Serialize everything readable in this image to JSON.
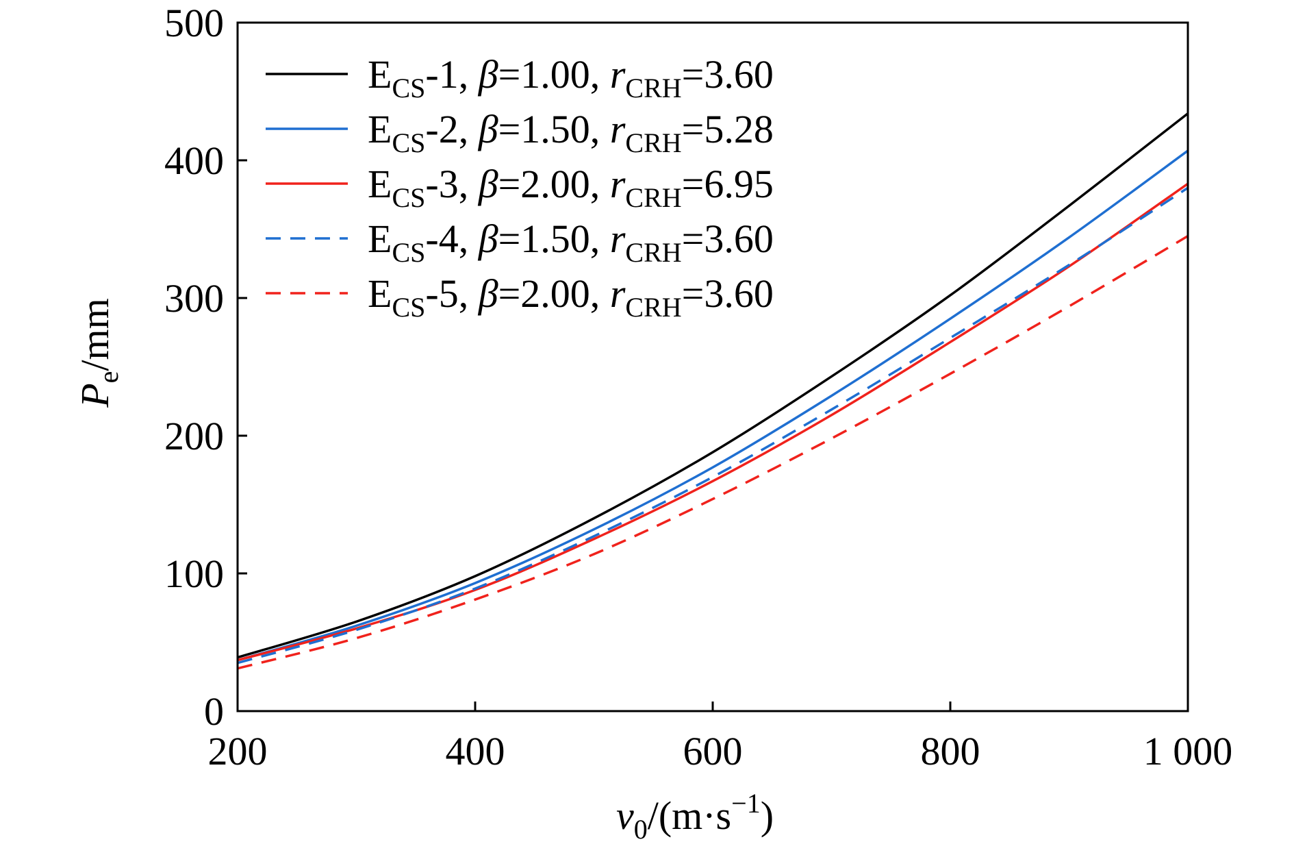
{
  "chart_data": {
    "type": "line",
    "title": "",
    "xlabel": {
      "main": "v",
      "sub": "0",
      "unit_open": "/(m·s",
      "unit_sup": "−1",
      "unit_close": ")"
    },
    "ylabel": {
      "main": "P",
      "sub": "e",
      "unit": "/mm"
    },
    "xlim": [
      200,
      1000
    ],
    "ylim": [
      0,
      500
    ],
    "xticks": [
      200,
      400,
      600,
      800,
      1000
    ],
    "xtick_labels": [
      "200",
      "400",
      "600",
      "800",
      "1 000"
    ],
    "yticks": [
      0,
      100,
      200,
      300,
      400,
      500
    ],
    "ytick_labels": [
      "0",
      "100",
      "200",
      "300",
      "400",
      "500"
    ],
    "grid": false,
    "legend_position": "top-left",
    "x": [
      200,
      300,
      400,
      500,
      600,
      700,
      800,
      900,
      1000
    ],
    "series": [
      {
        "name": "ECS-1, β=1.00, rCRH=3.60",
        "label": {
          "base": "E",
          "sub": "CS",
          "rest": "-1, ",
          "beta_sym": "β",
          "beta_val": "=1.00, ",
          "r_sym": "r",
          "r_sub": "CRH",
          "r_val": "=3.60"
        },
        "color": "#000000",
        "dash": "solid",
        "values": [
          39,
          65,
          98,
          140,
          188,
          243,
          302,
          367,
          434
        ]
      },
      {
        "name": "ECS-2, β=1.50, rCRH=5.28",
        "label": {
          "base": "E",
          "sub": "CS",
          "rest": "-2, ",
          "beta_sym": "β",
          "beta_val": "=1.50, ",
          "r_sym": "r",
          "r_sub": "CRH",
          "r_val": "=5.28"
        },
        "color": "#1f6fd1",
        "dash": "solid",
        "values": [
          37,
          62,
          93,
          132,
          177,
          229,
          285,
          344,
          407
        ]
      },
      {
        "name": "ECS-3, β=2.00, rCRH=6.95",
        "label": {
          "base": "E",
          "sub": "CS",
          "rest": "-3, ",
          "beta_sym": "β",
          "beta_val": "=2.00, ",
          "r_sym": "r",
          "r_sub": "CRH",
          "r_val": "=6.95"
        },
        "color": "#f0221c",
        "dash": "solid",
        "values": [
          37,
          60,
          88,
          125,
          167,
          215,
          268,
          323,
          383
        ]
      },
      {
        "name": "ECS-4, β=1.50, rCRH=3.60",
        "label": {
          "base": "E",
          "sub": "CS",
          "rest": "-4, ",
          "beta_sym": "β",
          "beta_val": "=1.50, ",
          "r_sym": "r",
          "r_sub": "CRH",
          "r_val": "=3.60"
        },
        "color": "#1f6fd1",
        "dash": "dashed",
        "values": [
          35,
          59,
          89,
          127,
          170,
          219,
          271,
          324,
          380
        ]
      },
      {
        "name": "ECS-5, β=2.00, rCRH=3.60",
        "label": {
          "base": "E",
          "sub": "CS",
          "rest": "-5, ",
          "beta_sym": "β",
          "beta_val": "=2.00, ",
          "r_sym": "r",
          "r_sub": "CRH",
          "r_val": "=3.60"
        },
        "color": "#f0221c",
        "dash": "dashed",
        "values": [
          31,
          53,
          81,
          114,
          154,
          198,
          245,
          294,
          345
        ]
      }
    ]
  }
}
